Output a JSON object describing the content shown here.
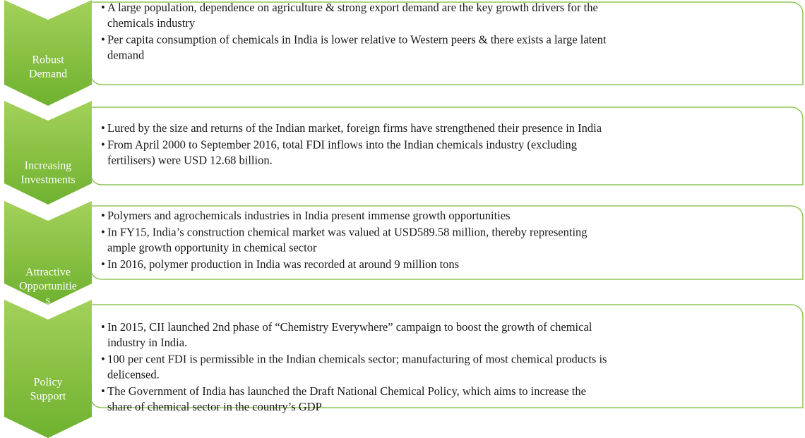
{
  "rows": [
    {
      "label": [
        "Robust",
        "Demand"
      ],
      "bullets": [
        [
          "A large population, dependence on agriculture & strong export demand are the key growth drivers for the",
          "chemicals industry"
        ],
        [
          "Per capita consumption of chemicals in India is lower relative to Western peers & there exists a large latent",
          "demand"
        ]
      ]
    },
    {
      "label": [
        "Increasing",
        "Investments"
      ],
      "bullets": [
        [
          "Lured by the size and returns of the Indian market, foreign firms have strengthened their presence in India"
        ],
        [
          "From April 2000 to September 2016, total FDI inflows into the Indian chemicals industry (excluding",
          "fertilisers) were USD 12.68 billion."
        ]
      ]
    },
    {
      "label": [
        "Attractive",
        "Opportunitie",
        "s"
      ],
      "bullets": [
        [
          "Polymers and agrochemicals industries in India present immense growth opportunities"
        ],
        [
          "In FY15, India’s construction chemical market was valued at USD589.58 million, thereby representing",
          "ample growth opportunity in chemical sector"
        ],
        [
          "In 2016, polymer production in India was recorded at around 9 million tons"
        ]
      ]
    },
    {
      "label": [
        "Policy",
        "Support"
      ],
      "bullets": [
        [
          "In 2015, CII launched 2nd phase of “Chemistry Everywhere” campaign to boost the growth of chemical",
          "industry in India."
        ],
        [
          "100 per cent FDI is permissible in the Indian chemicals sector; manufacturing of most chemical products is",
          "delicensed."
        ],
        [
          "The Government of India has launched the Draft National Chemical Policy, which aims to increase the",
          "share of chemical sector in the country’s GDP"
        ]
      ]
    }
  ]
}
